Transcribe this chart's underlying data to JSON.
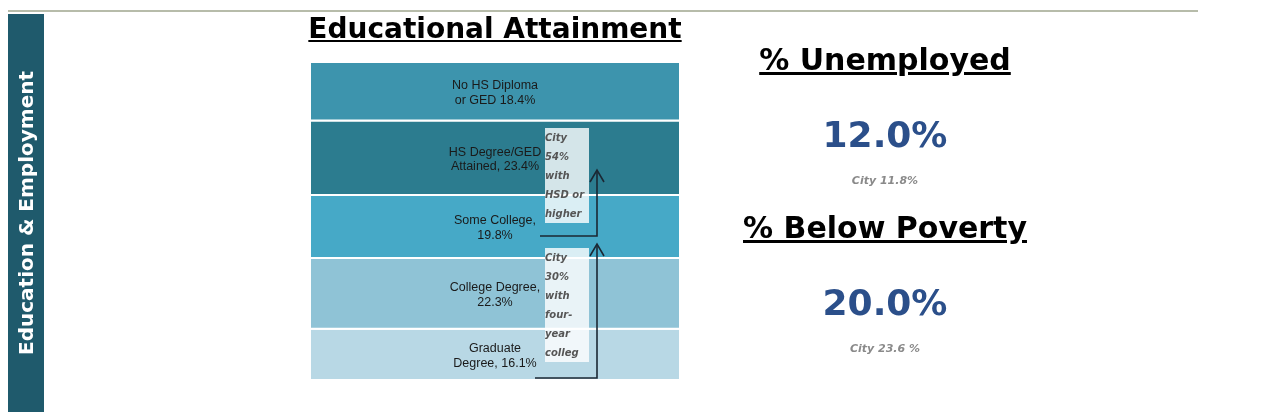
{
  "chart_data": [
    {
      "type": "other",
      "title": "Education & Employment"
    },
    {
      "type": "bar",
      "title": "Educational Attainment",
      "stacked": true,
      "tick_labels": false,
      "categories": [
        null
      ],
      "series": [
        {
          "color": "#b8d8e5",
          "values": [
            16.1
          ],
          "value_labels": [
            "Graduate\nDegree, 16.1%"
          ]
        },
        {
          "color": "#8fc3d6",
          "values": [
            22.3
          ],
          "value_labels": [
            "College Degree,\n22.3%"
          ]
        },
        {
          "color": "#46a9c7",
          "values": [
            19.8
          ],
          "value_labels": [
            "Some College,\n19.8%"
          ]
        },
        {
          "color": "#2c7c8f",
          "values": [
            23.4
          ],
          "value_labels": [
            "HS Degree/GED\nAttained, 23.4%"
          ]
        },
        {
          "color": "#3d94ad",
          "values": [
            18.4
          ],
          "value_labels": [
            "No HS Diploma\nor GED 18.4%"
          ]
        }
      ],
      "annotations": [
        "City 54% with HSD or higher",
        "City 30% with four-year colleg"
      ]
    },
    {
      "type": "other",
      "title": "% Unemployed",
      "annotations": [
        "12.0%",
        "City 11.8%"
      ]
    },
    {
      "type": "other",
      "title": "% Below Poverty",
      "annotations": [
        "20.0%",
        "City 23.6 %"
      ]
    }
  ]
}
